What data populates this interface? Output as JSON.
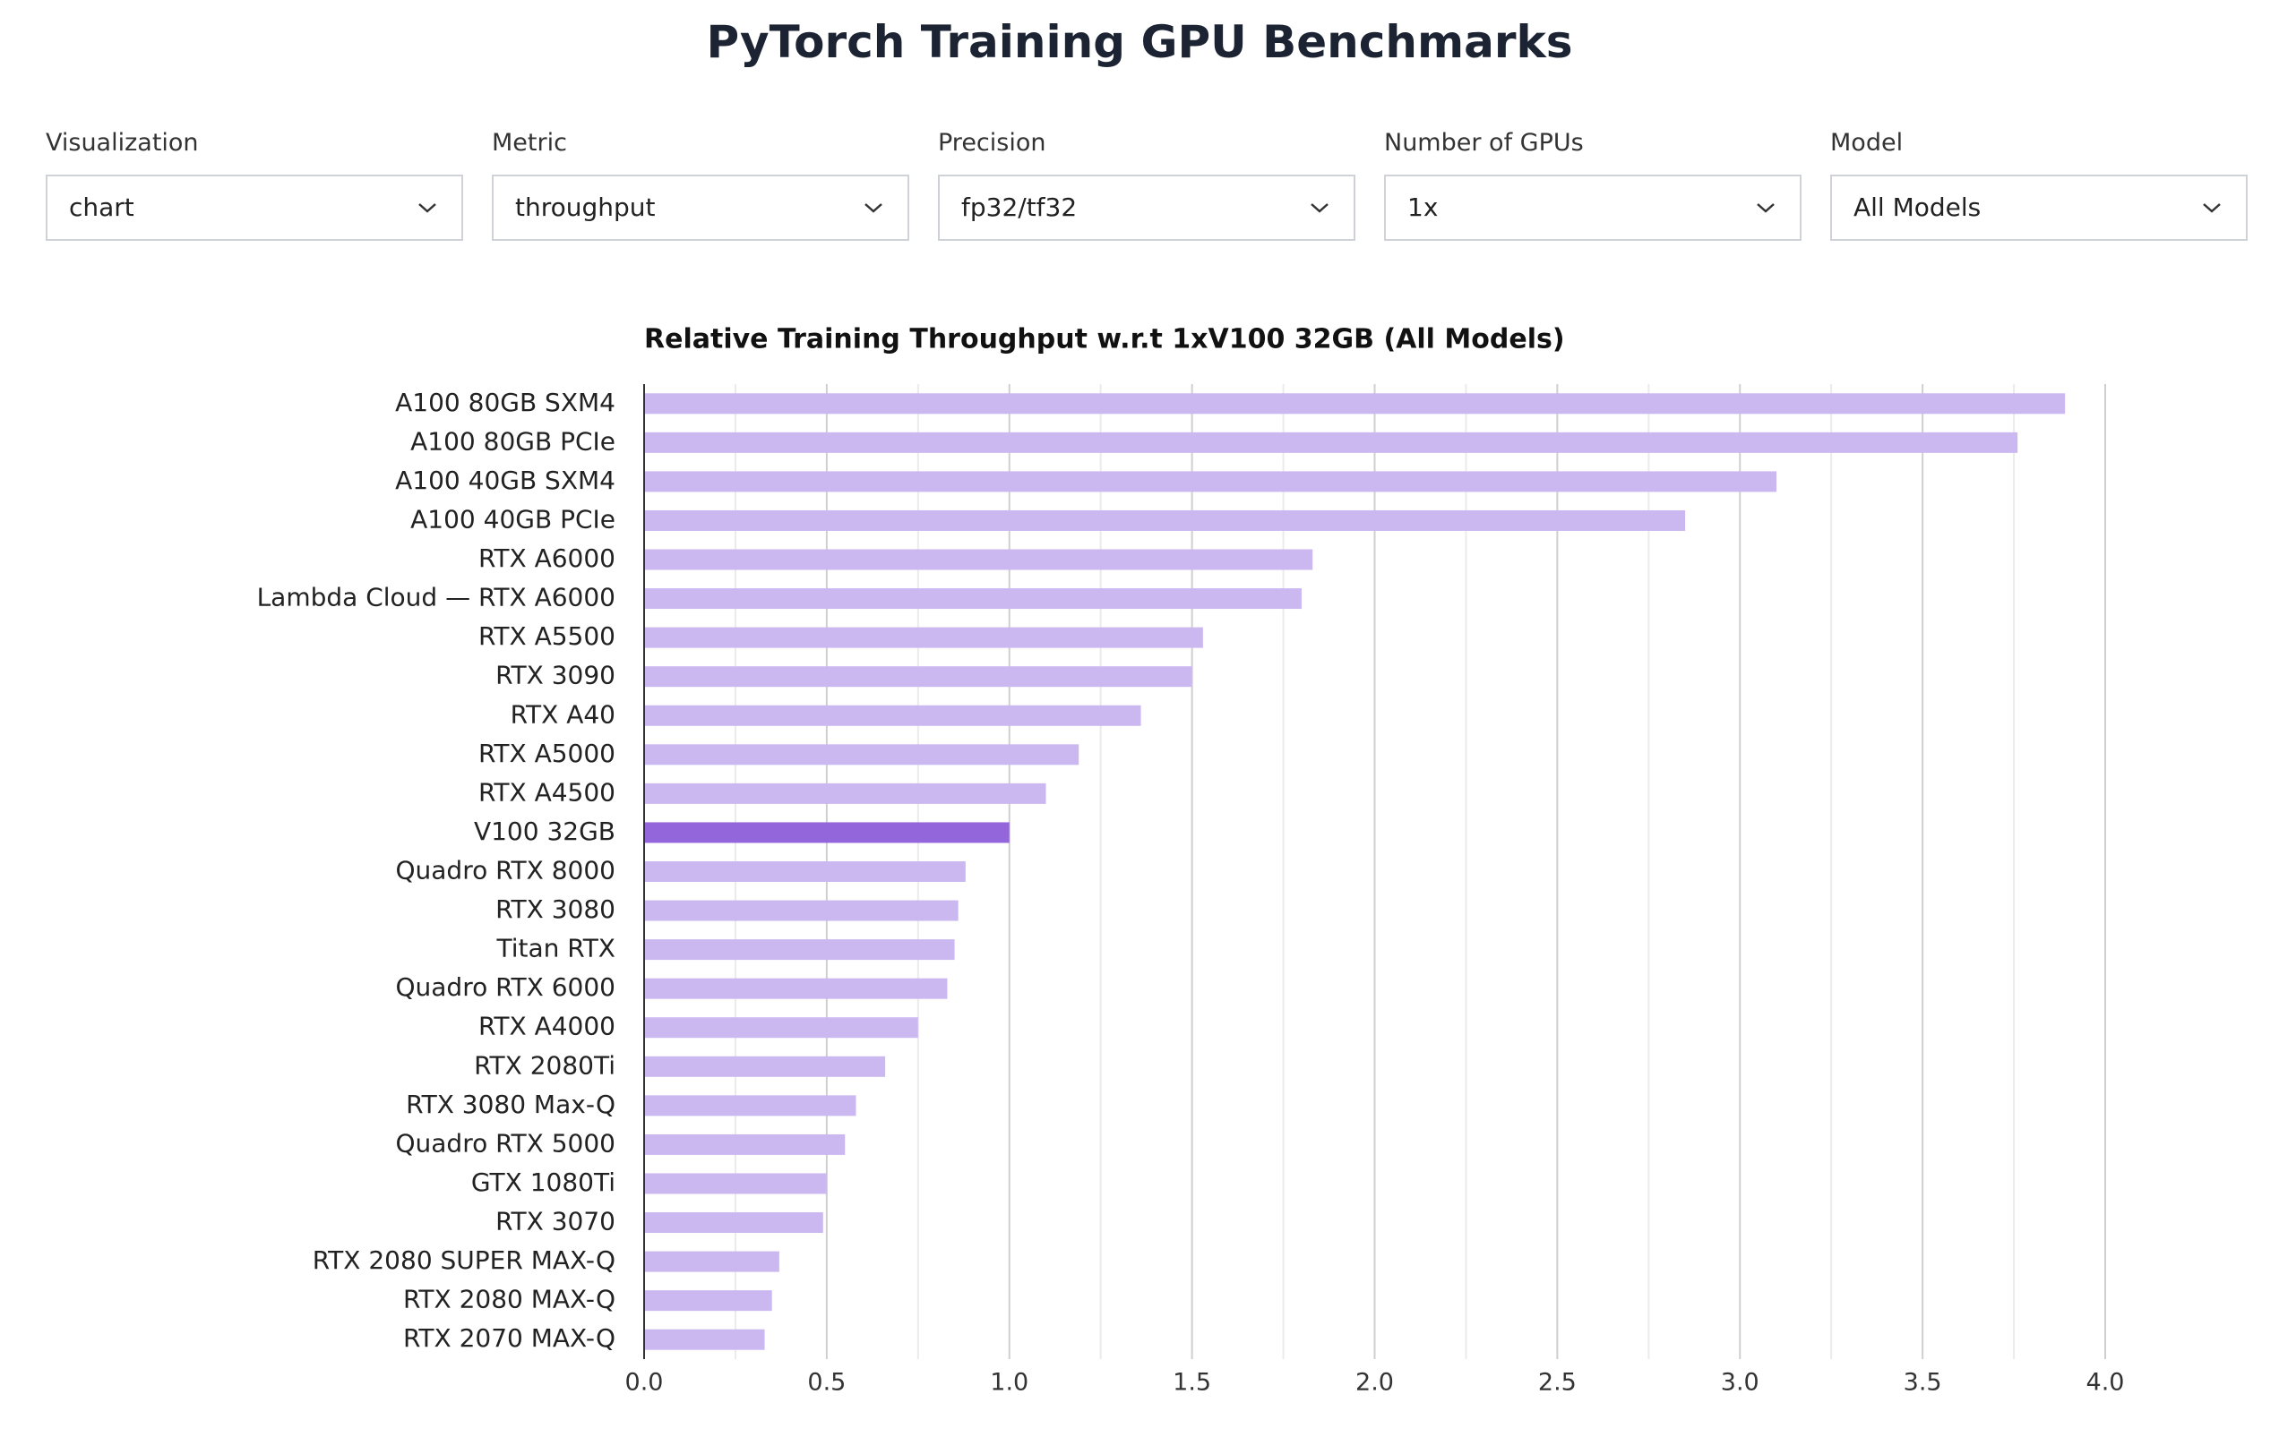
{
  "header": {
    "title": "PyTorch Training GPU Benchmarks"
  },
  "controls": [
    {
      "label": "Visualization",
      "value": "chart"
    },
    {
      "label": "Metric",
      "value": "throughput"
    },
    {
      "label": "Precision",
      "value": "fp32/tf32"
    },
    {
      "label": "Number of GPUs",
      "value": "1x"
    },
    {
      "label": "Model",
      "value": "All Models"
    }
  ],
  "chart_data": {
    "type": "barh",
    "title": "Relative Training Throughput w.r.t 1xV100 32GB (All Models)",
    "categories": [
      "A100 80GB SXM4",
      "A100 80GB PCIe",
      "A100 40GB SXM4",
      "A100 40GB PCIe",
      "RTX A6000",
      "Lambda Cloud — RTX A6000",
      "RTX A5500",
      "RTX 3090",
      "RTX A40",
      "RTX A5000",
      "RTX A4500",
      "V100 32GB",
      "Quadro RTX 8000",
      "RTX 3080",
      "Titan RTX",
      "Quadro RTX 6000",
      "RTX A4000",
      "RTX 2080Ti",
      "RTX 3080 Max-Q",
      "Quadro RTX 5000",
      "GTX 1080Ti",
      "RTX 3070",
      "RTX 2080 SUPER MAX-Q",
      "RTX 2080 MAX-Q",
      "RTX 2070 MAX-Q"
    ],
    "values": [
      3.89,
      3.76,
      3.1,
      2.85,
      1.83,
      1.8,
      1.53,
      1.5,
      1.36,
      1.19,
      1.1,
      1.0,
      0.88,
      0.86,
      0.85,
      0.83,
      0.75,
      0.66,
      0.58,
      0.55,
      0.5,
      0.49,
      0.37,
      0.35,
      0.33
    ],
    "colors": [
      "#cbb8f0",
      "#cbb8f0",
      "#cbb8f0",
      "#cbb8f0",
      "#cbb8f0",
      "#cbb8f0",
      "#cbb8f0",
      "#cbb8f0",
      "#cbb8f0",
      "#cbb8f0",
      "#cbb8f0",
      "#9466dc",
      "#cbb8f0",
      "#cbb8f0",
      "#cbb8f0",
      "#cbb8f0",
      "#cbb8f0",
      "#cbb8f0",
      "#cbb8f0",
      "#cbb8f0",
      "#cbb8f0",
      "#cbb8f0",
      "#cbb8f0",
      "#cbb8f0",
      "#cbb8f0"
    ],
    "xlim": [
      0,
      4
    ],
    "xticks": [
      {
        "value": 0,
        "label": "0.0"
      },
      0.5,
      {
        "value": 1,
        "label": "1.0"
      },
      1.5,
      {
        "value": 2,
        "label": "2.0"
      },
      2.5,
      {
        "value": 3,
        "label": "3.0"
      },
      3.5,
      {
        "value": 4,
        "label": "4.0"
      }
    ],
    "xminor": [
      0.25,
      0.75,
      1.25,
      1.75,
      2.25,
      2.75,
      3.25,
      3.75
    ],
    "grid": true
  }
}
